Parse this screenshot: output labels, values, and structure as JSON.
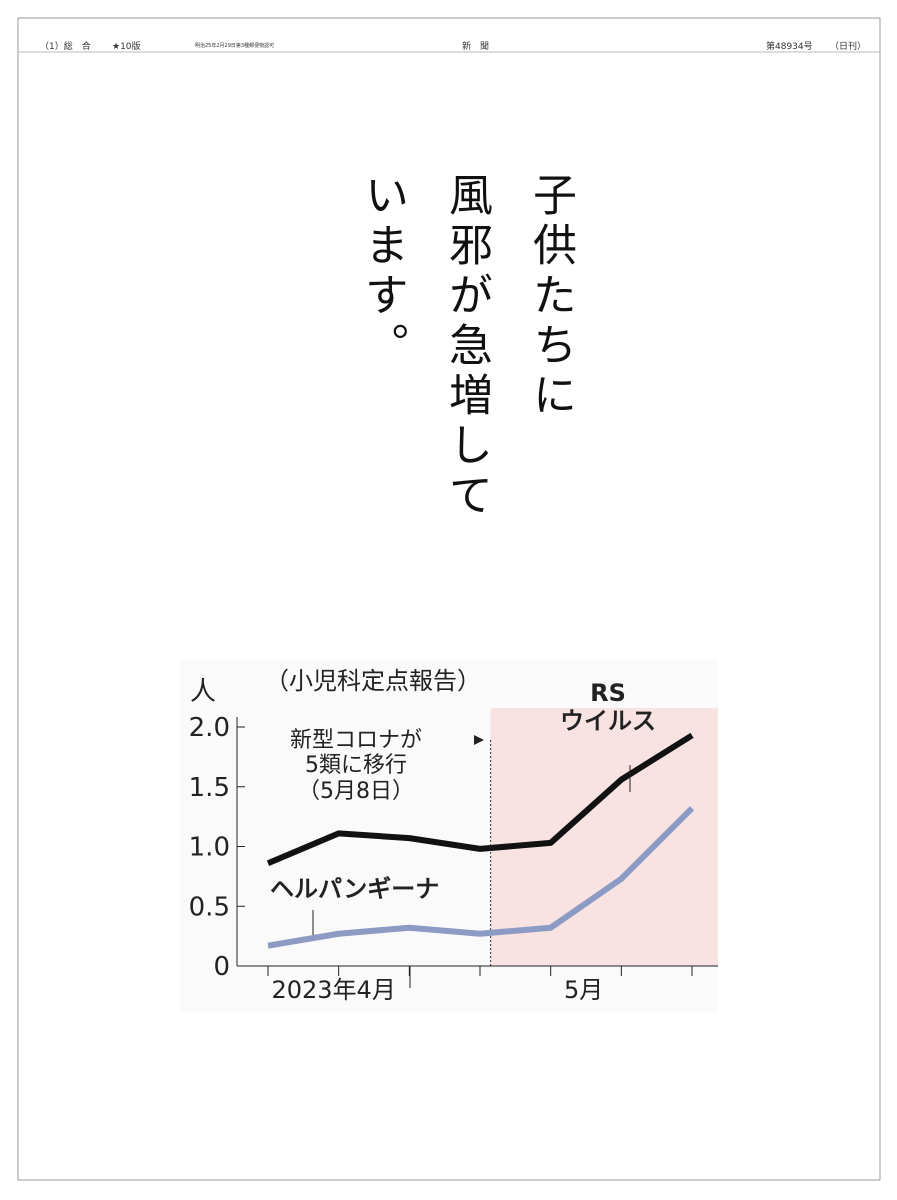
{
  "header": {
    "section": "（1）総　合",
    "edition": "★10版",
    "notice": "明治25年2月29日第3種郵便物認可",
    "masthead": "新　聞",
    "issue": "第48934号",
    "frequency": "（日刊）"
  },
  "headline": [
    "子供たちに",
    "風邪が急増して",
    "います。"
  ],
  "chart_data": {
    "type": "line",
    "subtitle": "（小児科定点報告）",
    "y_label": "人",
    "annotation": "新型コロナが\n5類に移行\n（5月8日）",
    "categories": [
      null,
      "2023年4月",
      null,
      null,
      "5月",
      null,
      null
    ],
    "series": [
      {
        "name": "RS\nウイルス",
        "color": "#111111",
        "values": [
          0.86,
          1.11,
          1.07,
          0.98,
          1.03,
          1.56,
          1.93
        ]
      },
      {
        "name": "ヘルパンギーナ",
        "color": "#8c9bc4",
        "values": [
          0.17,
          0.27,
          0.32,
          0.27,
          0.32,
          0.73,
          1.32
        ]
      }
    ],
    "ylim": [
      0,
      2.0
    ],
    "yticks": [
      0,
      0.5,
      {
        "value": 1.0,
        "label": "1.0"
      },
      1.5,
      {
        "value": 2.0,
        "label": "2.0"
      }
    ],
    "shade_color": "#f8e2e2"
  }
}
